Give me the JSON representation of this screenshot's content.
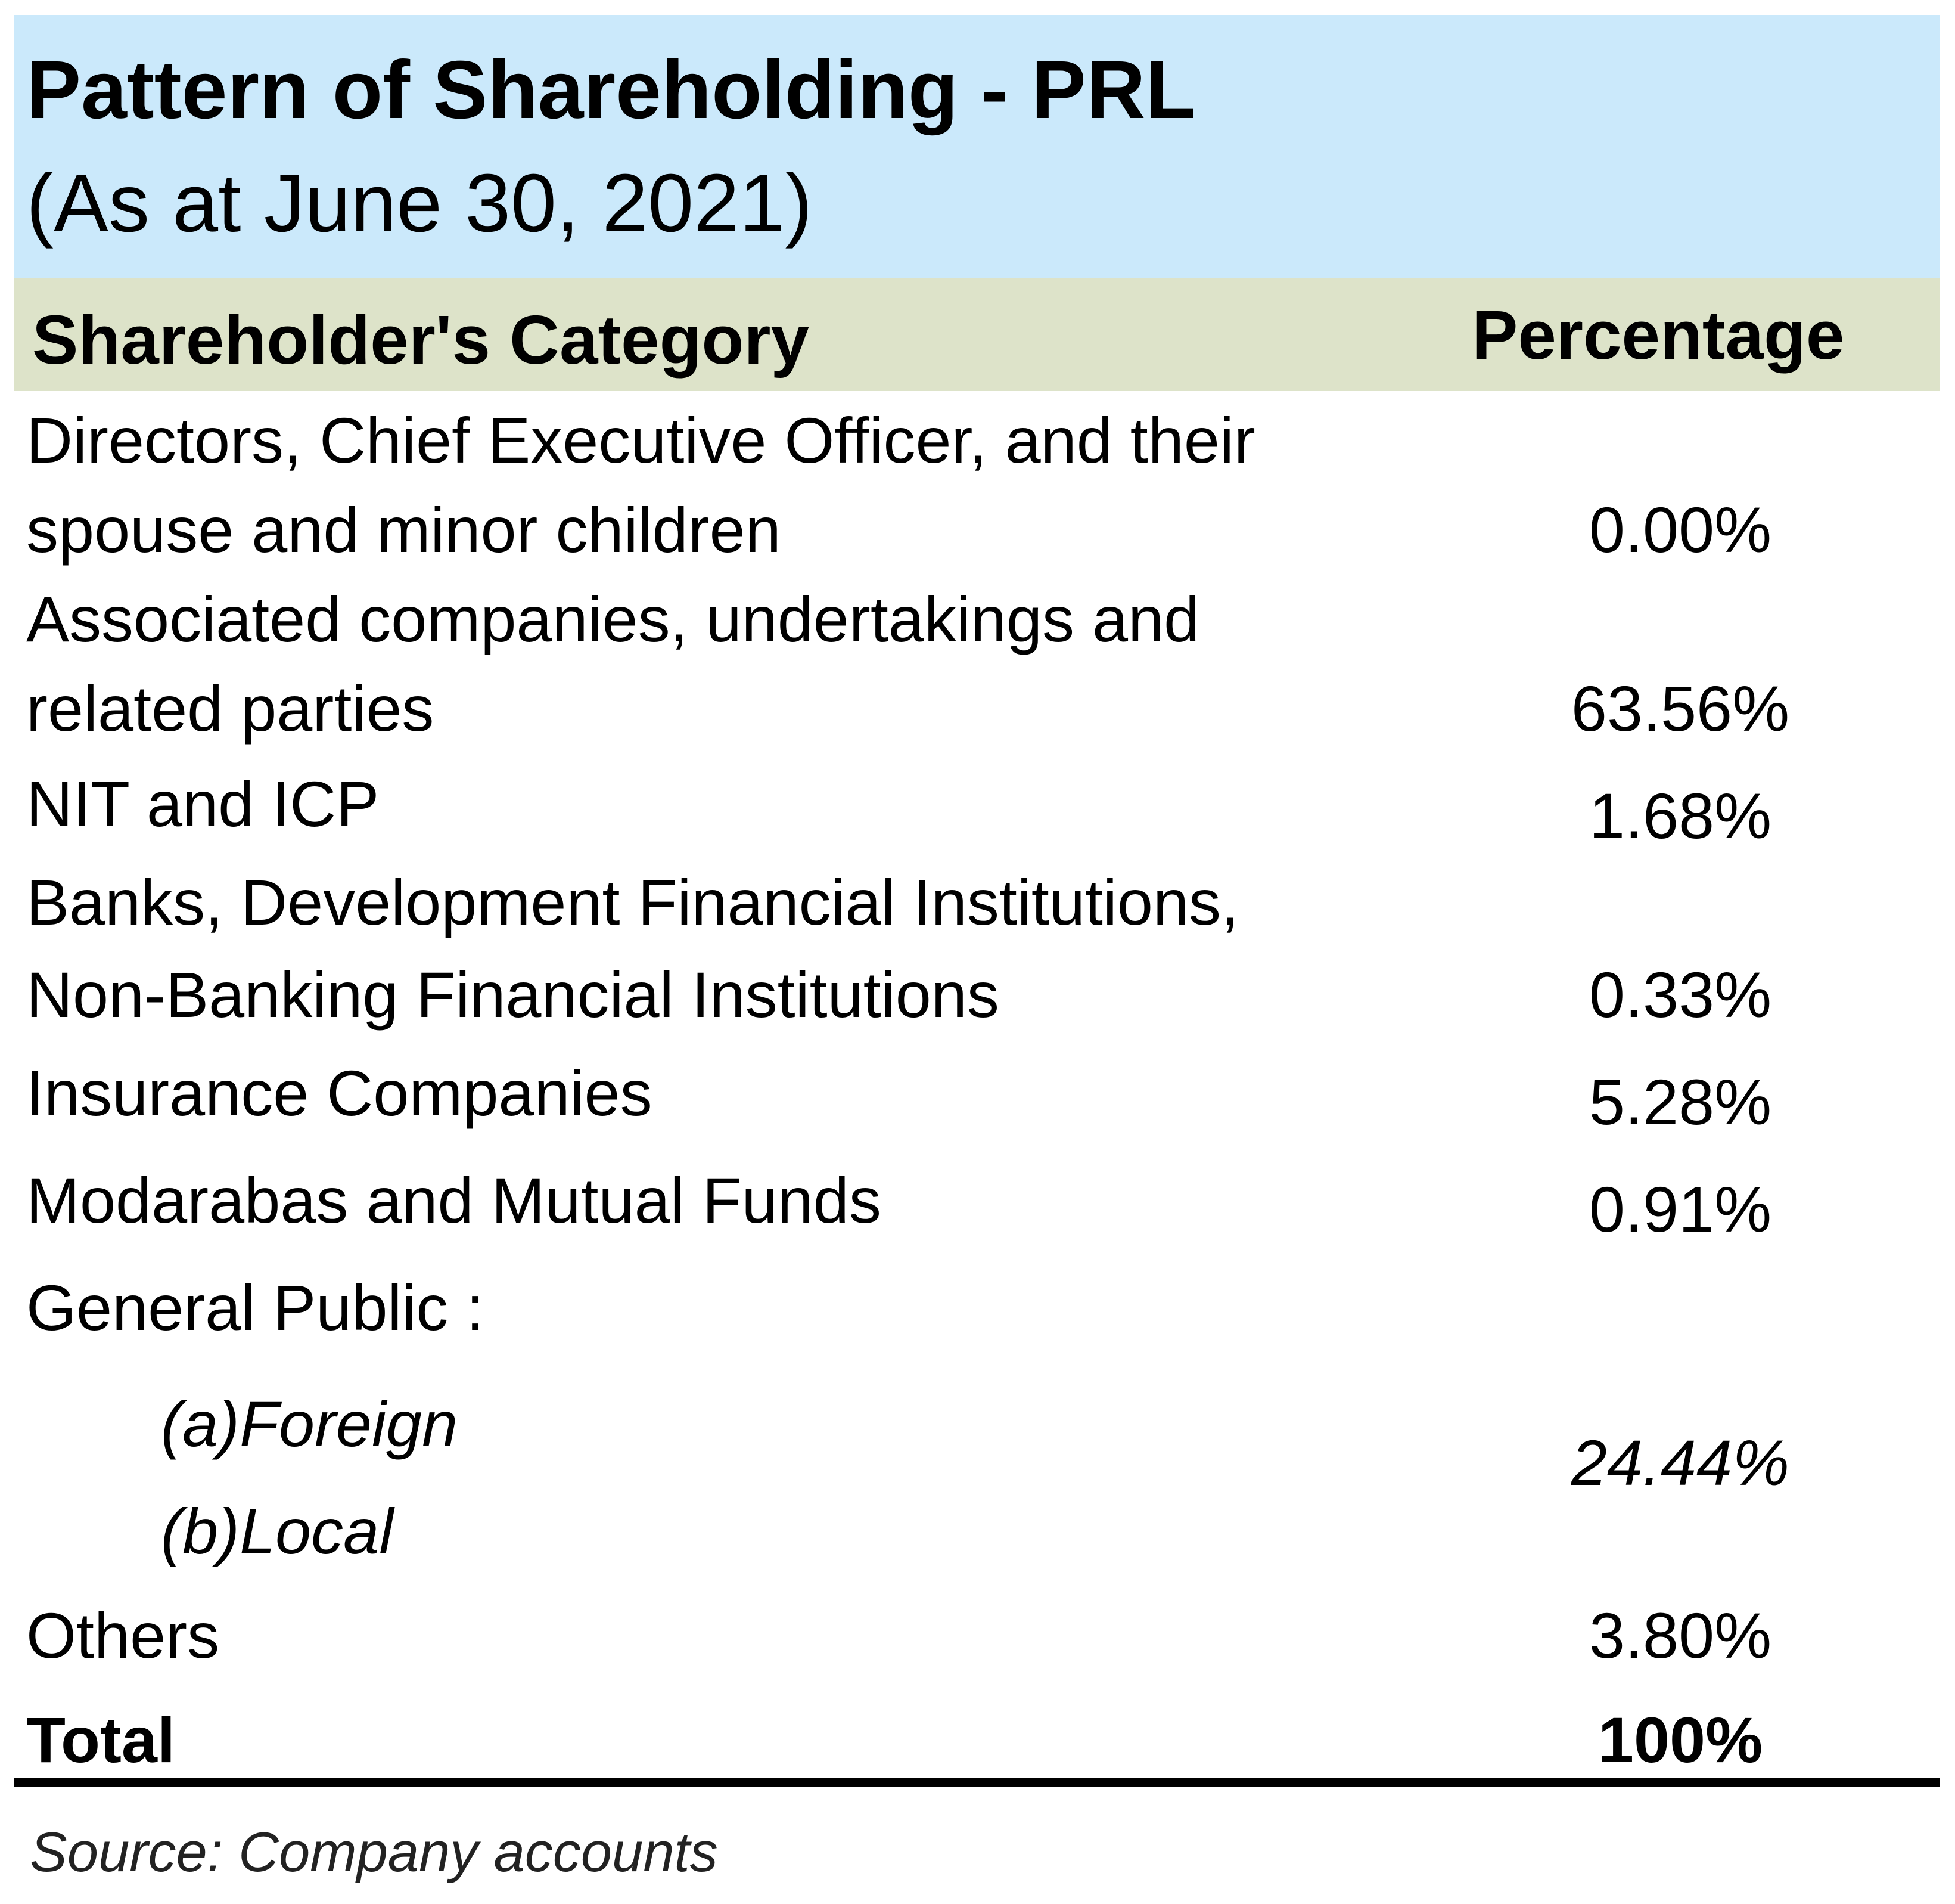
{
  "title": "Pattern of Shareholding - PRL",
  "subtitle": "(As at June 30, 2021)",
  "table": {
    "header": {
      "category": "Shareholder's Category",
      "percentage": "Percentage"
    },
    "rows": [
      {
        "category_line1": "Directors, Chief Executive Officer, and their",
        "category_line2": "spouse and minor children",
        "percentage": "0.00%"
      },
      {
        "category_line1": "Associated companies, undertakings and",
        "category_line2": "related parties",
        "percentage": "63.56%"
      },
      {
        "category": "NIT and ICP",
        "percentage": "1.68%"
      },
      {
        "category_line1": "Banks, Development Financial Institutions,",
        "category_line2": "Non-Banking Financial Institutions",
        "percentage": "0.33%"
      },
      {
        "category": "Insurance Companies",
        "percentage": "5.28%"
      },
      {
        "category": "Modarabas and Mutual Funds",
        "percentage": "0.91%"
      },
      {
        "category": "General Public :",
        "subitems": [
          "(a)Foreign",
          "(b)Local"
        ],
        "percentage": "24.44%"
      },
      {
        "category": "Others",
        "percentage": "3.80%"
      }
    ],
    "total": {
      "label": "Total",
      "percentage": "100%"
    }
  },
  "source": "Source: Company accounts"
}
